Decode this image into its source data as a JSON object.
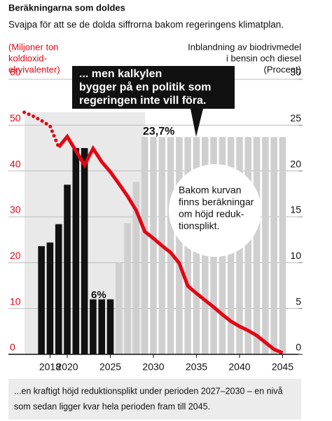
{
  "chart_data": {
    "type": "combo",
    "title": "Beräkningarna som doldes",
    "subtitle": "Svajpa för att se de dolda siffrorna bakom regeringens klimatplan.",
    "y_label": [
      "(Miljoner ton",
      "koldioxid-",
      "ekvivalenter)"
    ],
    "y2_label": [
      "Inblandning av biodrivmedel",
      "i bensin och diesel",
      "(Procent)"
    ],
    "x": [
      2015,
      2016,
      2017,
      2018,
      2019,
      2020,
      2021,
      2022,
      2023,
      2024,
      2025,
      2026,
      2027,
      2028,
      2029,
      2030,
      2031,
      2032,
      2033,
      2034,
      2035,
      2036,
      2037,
      2038,
      2039,
      2040,
      2041,
      2042,
      2043,
      2044,
      2045
    ],
    "xlim": [
      2014.5,
      2045.5
    ],
    "xticks": [
      2018,
      2020,
      2025,
      2030,
      2035,
      2040,
      2045
    ],
    "ylim": [
      0,
      60
    ],
    "yticks": [
      0,
      10,
      20,
      30,
      40,
      50,
      60
    ],
    "y2lim": [
      0,
      30
    ],
    "y2ticks": [
      0,
      5,
      10,
      15,
      20,
      25,
      30
    ],
    "y_tick_color": "#e30613",
    "grid": true,
    "series": [
      {
        "type": "bar",
        "axis": "y2",
        "color": "#111111",
        "values": [
          null,
          null,
          11.8,
          12.2,
          14.2,
          18.5,
          22.5,
          22.5,
          6,
          6,
          6,
          null,
          null,
          null,
          null,
          null,
          null,
          null,
          null,
          null,
          null,
          null,
          null,
          null,
          null,
          null,
          null,
          null,
          null,
          null,
          null
        ]
      },
      {
        "type": "bar",
        "axis": "y2",
        "color": "#cfcfcf",
        "values": [
          null,
          null,
          null,
          null,
          null,
          null,
          null,
          null,
          null,
          null,
          null,
          10,
          14.3,
          18.8,
          23.7,
          23.7,
          23.7,
          23.7,
          23.7,
          23.7,
          23.7,
          23.7,
          23.7,
          23.7,
          23.7,
          23.7,
          23.7,
          23.7,
          23.7,
          23.7,
          23.7
        ]
      },
      {
        "type": "line",
        "style": "dotted",
        "color": "#e30613",
        "values": [
          52.8,
          52,
          51,
          49.8,
          45.2,
          null,
          null,
          null,
          null,
          null,
          null,
          null,
          null,
          null,
          null,
          null,
          null,
          null,
          null,
          null,
          null,
          null,
          null,
          null,
          null,
          null,
          null,
          null,
          null,
          null,
          null
        ]
      },
      {
        "type": "line",
        "style": "solid",
        "color": "#e30613",
        "values": [
          null,
          null,
          null,
          null,
          45.2,
          47.5,
          44.4,
          41.3,
          44.9,
          42,
          39.8,
          37.2,
          34.5,
          31.4,
          26.8,
          25.3,
          23.7,
          22.2,
          19.9,
          14.9,
          13.3,
          11.8,
          10.3,
          8.7,
          7.2,
          6.1,
          5.2,
          4.1,
          2.6,
          1.1,
          0.3
        ]
      }
    ],
    "annotations": {
      "callout": [
        "... men kalkylen",
        "bygger på en politik som",
        "regeringen inte vill föra."
      ],
      "circle": [
        "Bakom kurvan",
        "finns beräkningar",
        "om höjd reduk-",
        "tionsplikt."
      ],
      "label_high": "23,7%",
      "label_low": "6%"
    },
    "caption": [
      "...en kraftigt höjd reduktionsplikt under perioden 2027–2030 – en nivå",
      "som sedan ligger kvar hela perioden fram till 2045."
    ]
  }
}
